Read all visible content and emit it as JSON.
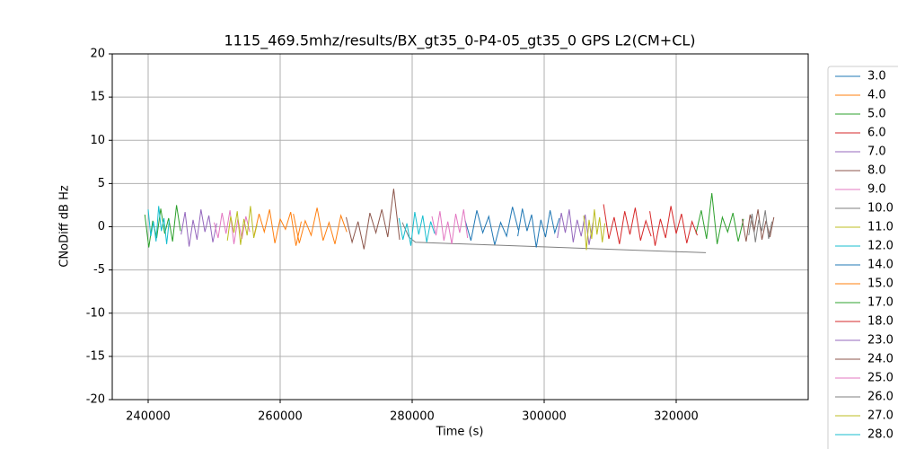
{
  "chart_data": {
    "type": "line",
    "title": "1115_469.5mhz/results/BX_gt35_0-P4-05_gt35_0 GPS L2(CM+CL)",
    "x_label": "Time (s)",
    "y_label": "CNoDiff dB Hz",
    "xlim": [
      234560,
      340000
    ],
    "ylim": [
      -20,
      20
    ],
    "xticks": [
      240000,
      260000,
      280000,
      300000,
      320000
    ],
    "yticks": [
      -20,
      -15,
      -10,
      -5,
      0,
      5,
      10,
      15,
      20
    ],
    "grid": true,
    "legend": "outside right",
    "series": [
      {
        "name": "3.0",
        "color": "#1f77b4",
        "x": [
          288000,
          288900,
          289800,
          290700,
          291600,
          292500,
          293400,
          294300,
          295200,
          296100
        ],
        "values": [
          0.8,
          -1.6,
          1.9,
          -0.7,
          1.2,
          -2.1,
          0.5,
          -1.1,
          2.3,
          -0.4
        ]
      },
      {
        "name": "4.0",
        "color": "#ff7f0e",
        "x": [
          256000,
          256800,
          257600,
          258400,
          259200,
          260000,
          260800,
          261600,
          262400,
          263200
        ],
        "values": [
          -1.2,
          1.5,
          -0.6,
          2.0,
          -1.9,
          0.9,
          -0.3,
          1.7,
          -2.2,
          0.6
        ]
      },
      {
        "name": "5.0",
        "color": "#2ca02c",
        "x": [
          239500,
          240100,
          240700,
          241300,
          241900,
          242500,
          243100,
          243700,
          244300,
          244900
        ],
        "values": [
          1.4,
          -2.4,
          0.7,
          -1.3,
          2.1,
          -0.8,
          1.0,
          -1.7,
          2.5,
          -0.5
        ]
      },
      {
        "name": "6.0",
        "color": "#d62728",
        "x": [
          309000,
          309800,
          310600,
          311400,
          312200,
          313000,
          313800,
          314600,
          315400,
          316200
        ],
        "values": [
          2.6,
          -1.4,
          1.1,
          -2.0,
          1.8,
          -0.9,
          2.2,
          -1.6,
          0.7,
          -1.1
        ]
      },
      {
        "name": "7.0",
        "color": "#9467bd",
        "x": [
          245000,
          245600,
          246200,
          246800,
          247400,
          248000,
          248600,
          249200,
          249800,
          250400
        ],
        "values": [
          -0.9,
          1.7,
          -2.3,
          0.8,
          -1.5,
          2.0,
          -0.6,
          1.3,
          -1.8,
          0.4
        ]
      },
      {
        "name": "8.0",
        "color": "#8c564b",
        "x": [
          270000,
          270900,
          271800,
          272700,
          273600,
          274500,
          275400,
          276300,
          277200,
          278100
        ],
        "values": [
          1.1,
          -1.8,
          0.6,
          -2.6,
          1.6,
          -0.7,
          2.0,
          -1.2,
          4.4,
          -1.5
        ]
      },
      {
        "name": "9.0",
        "color": "#e377c2",
        "x": [
          250000,
          250600,
          251200,
          251800,
          252400,
          253000,
          253600,
          254200,
          254800,
          255400
        ],
        "values": [
          0.5,
          -1.3,
          1.6,
          -0.8,
          1.9,
          -2.0,
          0.9,
          -1.4,
          1.2,
          -0.6
        ]
      },
      {
        "name": "10.0",
        "color": "#7f7f7f",
        "x": [
          278500,
          279500,
          280500,
          324500
        ],
        "values": [
          0.5,
          -1.2,
          -1.8,
          -3.0
        ]
      },
      {
        "name": "11.0",
        "color": "#bcbd22",
        "x": [
          252000,
          252500,
          253000,
          253500,
          254000,
          254500,
          255000,
          255500,
          256000,
          256500
        ],
        "values": [
          -1.6,
          1.2,
          -0.7,
          1.8,
          -2.1,
          0.9,
          -1.0,
          2.4,
          -1.3,
          0.3
        ]
      },
      {
        "name": "12.0",
        "color": "#17becf",
        "x": [
          278000,
          278600,
          279200,
          279800,
          280400,
          281000,
          281600,
          282200,
          282800,
          283400
        ],
        "values": [
          1.0,
          -1.5,
          0.4,
          -2.2,
          1.7,
          -0.9,
          1.3,
          -1.8,
          0.6,
          -0.8
        ]
      },
      {
        "name": "14.0",
        "color": "#1f77b4",
        "x": [
          296000,
          296700,
          297400,
          298100,
          298800,
          299500,
          300200,
          300900,
          301600,
          302300
        ],
        "values": [
          -1.1,
          2.1,
          -0.5,
          1.4,
          -2.4,
          0.8,
          -1.2,
          1.9,
          -0.7,
          1.0
        ]
      },
      {
        "name": "15.0",
        "color": "#ff7f0e",
        "x": [
          262000,
          262900,
          263800,
          264700,
          265600,
          266500,
          267400,
          268300,
          269200,
          270100
        ],
        "values": [
          1.5,
          -1.9,
          0.7,
          -1.0,
          2.2,
          -1.6,
          0.5,
          -2.0,
          1.3,
          -0.6
        ]
      },
      {
        "name": "17.0",
        "color": "#2ca02c",
        "x": [
          323000,
          323800,
          324600,
          325400,
          326200,
          327000,
          327800,
          328600,
          329400,
          330200
        ],
        "values": [
          -0.8,
          1.9,
          -1.4,
          3.9,
          -2.0,
          1.1,
          -0.6,
          1.6,
          -1.7,
          0.9
        ]
      },
      {
        "name": "18.0",
        "color": "#d62728",
        "x": [
          316000,
          316800,
          317600,
          318400,
          319200,
          320000,
          320800,
          321600,
          322400,
          323200
        ],
        "values": [
          1.8,
          -2.2,
          0.9,
          -1.3,
          2.4,
          -0.8,
          1.5,
          -1.9,
          0.6,
          -1.0
        ]
      },
      {
        "name": "23.0",
        "color": "#9467bd",
        "x": [
          302000,
          302600,
          303200,
          303800,
          304400,
          305000,
          305600,
          306200,
          306800,
          307400
        ],
        "values": [
          -1.3,
          1.6,
          -0.7,
          2.0,
          -1.8,
          0.8,
          -1.1,
          1.4,
          -2.1,
          0.5
        ]
      },
      {
        "name": "24.0",
        "color": "#8c564b",
        "x": [
          330000,
          330600,
          331200,
          331800,
          332400,
          333000,
          333600,
          334200,
          334800
        ],
        "values": [
          0.9,
          -1.7,
          1.4,
          -0.6,
          2.0,
          -1.5,
          0.7,
          -1.2,
          1.1
        ]
      },
      {
        "name": "25.0",
        "color": "#e377c2",
        "x": [
          283000,
          283600,
          284200,
          284800,
          285400,
          286000,
          286600,
          287200,
          287800,
          288400
        ],
        "values": [
          1.2,
          -1.0,
          1.8,
          -1.6,
          0.6,
          -2.0,
          1.5,
          -0.7,
          2.0,
          -1.3
        ]
      },
      {
        "name": "26.0",
        "color": "#7f7f7f",
        "x": [
          331000,
          331500,
          332000,
          332500,
          333000,
          333500,
          334000,
          334500
        ],
        "values": [
          -1.0,
          1.5,
          -1.8,
          0.8,
          -0.5,
          1.9,
          -1.4,
          0.6
        ]
      },
      {
        "name": "27.0",
        "color": "#bcbd22",
        "x": [
          306000,
          306400,
          306800,
          307200,
          307600,
          308000,
          308400,
          308800,
          309200
        ],
        "values": [
          1.3,
          -2.7,
          0.8,
          -1.4,
          2.0,
          -0.9,
          1.1,
          -1.8,
          0.4
        ]
      },
      {
        "name": "28.0",
        "color": "#17becf",
        "x": [
          240000,
          240400,
          240800,
          241200,
          241600,
          242000,
          242400,
          242800,
          243200
        ],
        "values": [
          2.0,
          -1.1,
          0.6,
          -1.7,
          2.4,
          -0.5,
          1.0,
          -2.0,
          0.8
        ]
      }
    ]
  }
}
